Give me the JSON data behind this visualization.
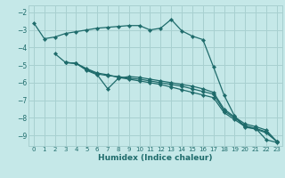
{
  "bg_color": "#c5e8e8",
  "grid_color": "#a8d0d0",
  "line_color": "#1e6b6b",
  "xlabel": "Humidex (Indice chaleur)",
  "xlim": [
    -0.5,
    23.5
  ],
  "ylim": [
    -9.6,
    -1.6
  ],
  "yticks": [
    -9,
    -8,
    -7,
    -6,
    -5,
    -4,
    -3,
    -2
  ],
  "xticks": [
    0,
    1,
    2,
    3,
    4,
    5,
    6,
    7,
    8,
    9,
    10,
    11,
    12,
    13,
    14,
    15,
    16,
    17,
    18,
    19,
    20,
    21,
    22,
    23
  ],
  "line1_x": [
    0,
    1,
    2,
    3,
    4,
    5,
    6,
    7,
    8,
    9,
    10,
    11,
    12,
    13,
    14,
    15,
    16,
    17,
    18,
    19,
    20,
    21,
    22,
    23
  ],
  "line1_y": [
    -2.6,
    -3.5,
    -3.4,
    -3.2,
    -3.1,
    -3.0,
    -2.9,
    -2.85,
    -2.8,
    -2.75,
    -2.75,
    -3.0,
    -2.9,
    -2.4,
    -3.05,
    -3.35,
    -3.55,
    -5.1,
    -6.7,
    -7.9,
    -8.55,
    -8.6,
    -9.25,
    -9.4
  ],
  "line2_x": [
    2,
    3,
    4,
    5,
    6,
    7,
    8,
    9,
    10,
    11,
    12,
    13,
    14,
    15,
    16,
    17,
    18,
    19,
    20,
    21,
    22,
    23
  ],
  "line2_y": [
    -4.35,
    -4.85,
    -4.9,
    -5.3,
    -5.55,
    -6.35,
    -5.75,
    -5.65,
    -5.7,
    -5.8,
    -5.9,
    -6.0,
    -6.1,
    -6.2,
    -6.35,
    -6.55,
    -7.5,
    -7.95,
    -8.35,
    -8.5,
    -8.7,
    -9.35
  ],
  "line3_x": [
    3,
    4,
    5,
    6,
    7,
    8,
    9,
    10,
    11,
    12,
    13,
    14,
    15,
    16,
    17,
    18,
    19,
    20,
    21,
    22,
    23
  ],
  "line3_y": [
    -4.85,
    -4.9,
    -5.25,
    -5.5,
    -5.6,
    -5.65,
    -5.75,
    -5.8,
    -5.9,
    -6.0,
    -6.1,
    -6.2,
    -6.35,
    -6.5,
    -6.65,
    -7.6,
    -8.0,
    -8.45,
    -8.6,
    -8.8,
    -9.35
  ],
  "line4_x": [
    3,
    4,
    5,
    6,
    7,
    8,
    9,
    10,
    11,
    12,
    13,
    14,
    15,
    16,
    17,
    18,
    19,
    20,
    21,
    22,
    23
  ],
  "line4_y": [
    -4.85,
    -4.9,
    -5.2,
    -5.45,
    -5.55,
    -5.7,
    -5.8,
    -5.9,
    -6.0,
    -6.1,
    -6.25,
    -6.4,
    -6.55,
    -6.7,
    -6.85,
    -7.7,
    -8.1,
    -8.5,
    -8.65,
    -8.85,
    -9.35
  ]
}
